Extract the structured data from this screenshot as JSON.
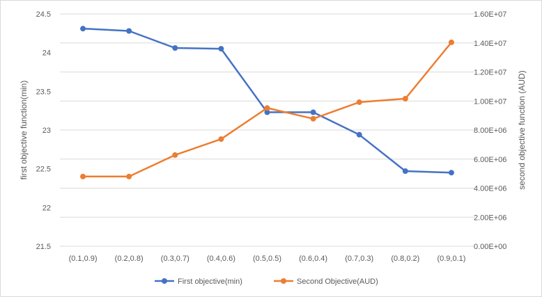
{
  "chart_data": {
    "type": "line",
    "categories": [
      "(0.1,0.9)",
      "(0.2,0.8)",
      "(0.3,0.7)",
      "(0.4,0.6)",
      "(0.5,0.5)",
      "(0.6,0.4)",
      "(0.7,0.3)",
      "(0.8,0.2)",
      "(0.9,0.1)"
    ],
    "series": [
      {
        "name": "First objective(min)",
        "axis": "left",
        "color": "#4472c4",
        "values": [
          24.31,
          24.28,
          24.06,
          24.05,
          23.23,
          23.23,
          22.94,
          22.47,
          22.45
        ]
      },
      {
        "name": "Second Objective(AUD)",
        "axis": "right",
        "color": "#ed7d31",
        "values": [
          4800000,
          4800000,
          6280000,
          7380000,
          9520000,
          8780000,
          9920000,
          10160000,
          14040000
        ]
      }
    ],
    "ylabel": "first objective function(min)",
    "y2label": "second objective function (AUD)",
    "ylim": [
      21.5,
      24.5
    ],
    "yticks": [
      "21.5",
      "22",
      "22.5",
      "23",
      "23.5",
      "24",
      "24.5"
    ],
    "y2lim": [
      0,
      16000000
    ],
    "y2ticks": [
      "0.00E+00",
      "2.00E+06",
      "4.00E+06",
      "6.00E+06",
      "8.00E+06",
      "1.00E+07",
      "1.20E+07",
      "1.40E+07",
      "1.60E+07"
    ],
    "grid": true,
    "legend": "bottom"
  }
}
